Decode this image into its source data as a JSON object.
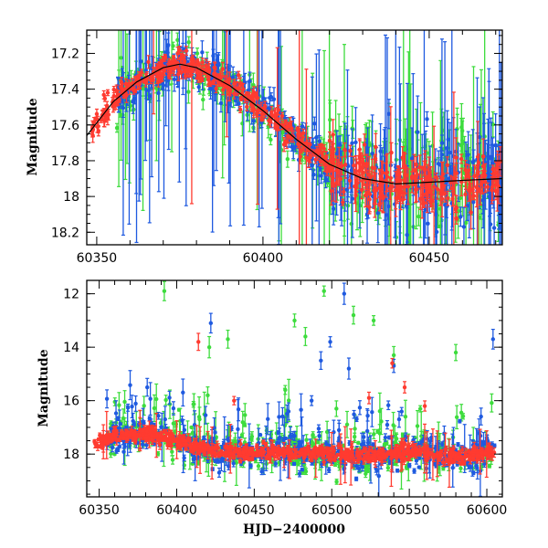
{
  "chart_data": [
    {
      "type": "scatter",
      "title": "",
      "xlabel": "",
      "ylabel": "Magnitude",
      "xlim": [
        60347,
        60472
      ],
      "ylim": [
        18.27,
        17.07
      ],
      "y_inverted": true,
      "grid": false,
      "x_ticks": [
        60350,
        60400,
        60450
      ],
      "y_ticks": [
        17.2,
        17.4,
        17.6,
        17.8,
        18,
        18.2
      ],
      "x_tick_labels": [
        "60350",
        "60400",
        "60450"
      ],
      "y_tick_labels": [
        "17.2",
        "17.4",
        "17.6",
        "17.8",
        "18",
        "18.2"
      ],
      "colors": {
        "red": "#ff3b30",
        "green": "#3ddc3d",
        "blue": "#1f5ae0"
      },
      "fit_curve": {
        "x": [
          60347,
          60355,
          60362,
          60370,
          60375,
          60380,
          60390,
          60400,
          60410,
          60420,
          60430,
          60440,
          60450,
          60460,
          60472
        ],
        "y": [
          17.66,
          17.47,
          17.36,
          17.28,
          17.26,
          17.28,
          17.38,
          17.52,
          17.68,
          17.82,
          17.9,
          17.93,
          17.92,
          17.91,
          17.9
        ]
      }
    },
    {
      "type": "scatter",
      "title": "",
      "xlabel": "HJD−2400000",
      "ylabel": "Magnitude",
      "xlim": [
        60342,
        60610
      ],
      "ylim": [
        19.6,
        11.5
      ],
      "y_inverted": true,
      "grid": false,
      "x_ticks": [
        60350,
        60400,
        60450,
        60500,
        60550,
        60600
      ],
      "y_ticks": [
        12,
        14,
        16,
        18
      ],
      "x_tick_labels": [
        "60350",
        "60400",
        "60450",
        "60500",
        "60550",
        "60600"
      ],
      "y_tick_labels": [
        "12",
        "14",
        "16",
        "18"
      ],
      "colors": {
        "red": "#ff3b30",
        "green": "#3ddc3d",
        "blue": "#1f5ae0"
      },
      "outliers": {
        "green": [
          [
            60392,
            11.9
          ],
          [
            60421,
            14.0
          ],
          [
            60433,
            13.7
          ],
          [
            60476,
            13.0
          ],
          [
            60483,
            13.6
          ],
          [
            60495,
            11.9
          ],
          [
            60514,
            12.8
          ],
          [
            60527,
            13.0
          ],
          [
            60540,
            14.3
          ],
          [
            60580,
            14.2
          ],
          [
            60420,
            15.8
          ],
          [
            60470,
            15.6
          ],
          [
            60503,
            16.3
          ]
        ],
        "blue": [
          [
            60422,
            13.1
          ],
          [
            60499,
            13.8
          ],
          [
            60508,
            12.0
          ],
          [
            60493,
            14.5
          ],
          [
            60511,
            14.8
          ],
          [
            60540,
            14.7
          ],
          [
            60604,
            13.7
          ],
          [
            60381,
            15.5
          ],
          [
            60487,
            16.0
          ]
        ],
        "red": [
          [
            60414,
            13.8
          ],
          [
            60437,
            16.0
          ],
          [
            60539,
            14.6
          ],
          [
            60547,
            15.5
          ],
          [
            60524,
            15.9
          ],
          [
            60560,
            16.2
          ]
        ]
      }
    }
  ]
}
